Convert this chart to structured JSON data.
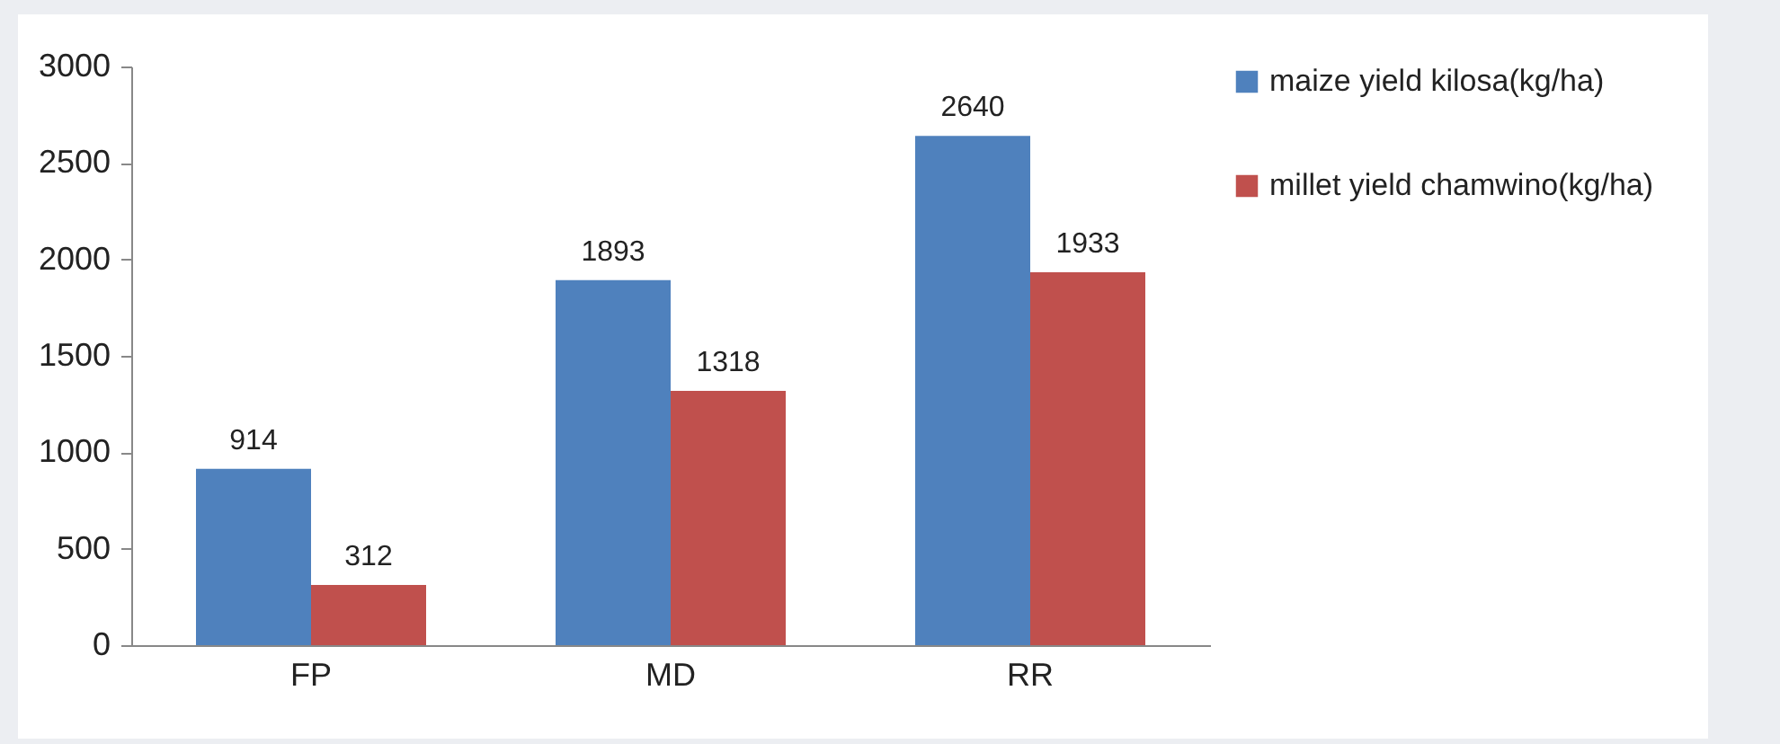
{
  "chart_data": {
    "type": "bar",
    "categories": [
      "FP",
      "MD",
      "RR"
    ],
    "series": [
      {
        "name": "maize yield kilosa(kg/ha)",
        "color": "#4f81bd",
        "values": [
          914,
          1893,
          2640
        ]
      },
      {
        "name": "millet yield chamwino(kg/ha)",
        "color": "#c0504d",
        "values": [
          312,
          1318,
          1933
        ]
      }
    ],
    "ylim": [
      0,
      3000
    ],
    "yticks": [
      0,
      500,
      1000,
      1500,
      2000,
      2500,
      3000
    ],
    "data_labels": true,
    "grid": false,
    "legend": "right"
  }
}
